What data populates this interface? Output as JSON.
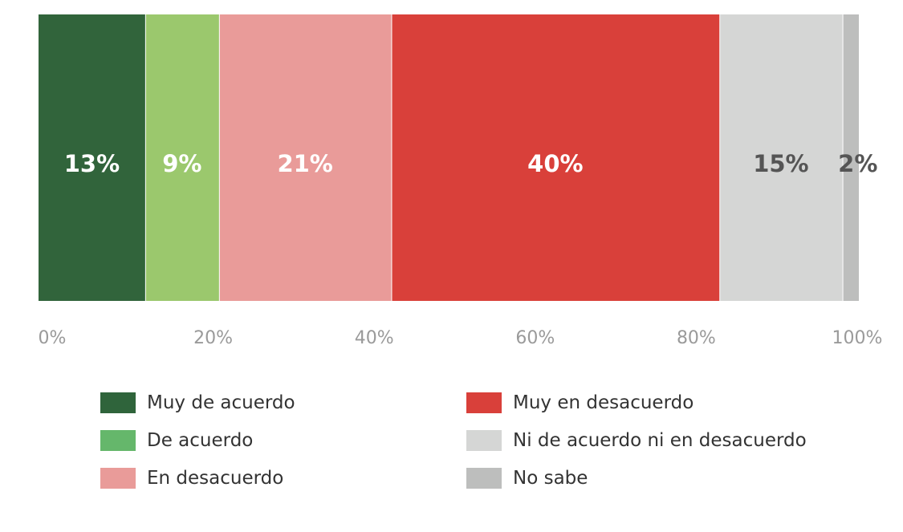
{
  "chart_data": {
    "type": "bar",
    "orientation": "horizontal-stacked",
    "categories": [
      ""
    ],
    "series": [
      {
        "name": "Muy de acuerdo",
        "values": [
          13
        ],
        "label": "13%",
        "color": "#31643b",
        "legend_color": "#2f643b",
        "label_color": "#ffffff"
      },
      {
        "name": "De acuerdo",
        "values": [
          9
        ],
        "label": "9%",
        "color": "#9bc86d",
        "legend_color": "#65b76b",
        "label_color": "#ffffff"
      },
      {
        "name": "En desacuerdo",
        "values": [
          21
        ],
        "label": "21%",
        "color": "#e99b99",
        "legend_color": "#e99b99",
        "label_color": "#ffffff"
      },
      {
        "name": "Muy en desacuerdo",
        "values": [
          40
        ],
        "label": "40%",
        "color": "#d9403a",
        "legend_color": "#d9403a",
        "label_color": "#ffffff"
      },
      {
        "name": "Ni de acuerdo ni en desacuerdo",
        "values": [
          15
        ],
        "label": "15%",
        "color": "#d5d6d5",
        "legend_color": "#d5d6d5",
        "label_color": "#555555"
      },
      {
        "name": "No sabe",
        "values": [
          2
        ],
        "label": "2%",
        "color": "#bdbebd",
        "legend_color": "#bdbebd",
        "label_color": "#555555"
      }
    ],
    "xlim": [
      0,
      100
    ],
    "xticks": [
      "0%",
      "20%",
      "40%",
      "60%",
      "80%",
      "100%"
    ],
    "title": "",
    "xlabel": "",
    "ylabel": "",
    "grid": false,
    "legend_position": "bottom"
  }
}
